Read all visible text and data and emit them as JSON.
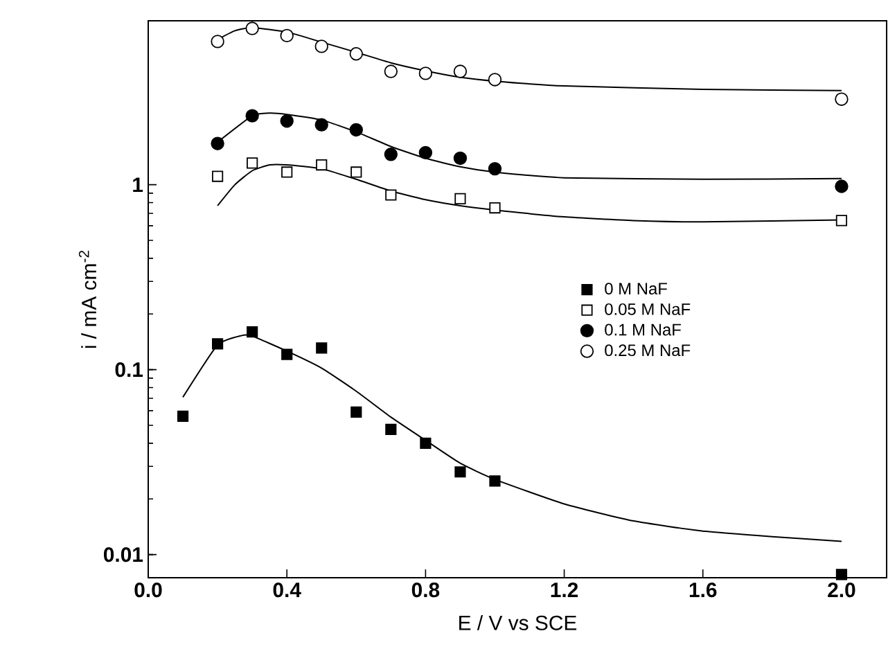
{
  "chart_data": {
    "type": "scatter",
    "xlabel": "E / V vs SCE",
    "ylabel": "i / mA cm$^{-2}$",
    "log": "y",
    "xlim": [
      0,
      2.13
    ],
    "ylim": [
      0.0075,
      7.7
    ],
    "xticks": [
      {
        "value": 0,
        "label": "0.0"
      },
      {
        "value": 0.4,
        "label": "0.4"
      },
      {
        "value": 0.8,
        "label": "0.8"
      },
      {
        "value": 1.2,
        "label": "1.2"
      },
      {
        "value": 1.6,
        "label": "1.6"
      },
      {
        "value": 2.0,
        "label": "2.0"
      }
    ],
    "yticks": [
      0.01,
      0.1,
      1
    ],
    "legend": "right",
    "grid": false,
    "series": [
      {
        "name": "0  M NaF",
        "marker": "square",
        "color": "#000000",
        "x": [
          0.1,
          0.2,
          0.3,
          0.4,
          0.5,
          0.6,
          0.7,
          0.8,
          0.9,
          1.0,
          2.0
        ],
        "values": [
          0.056,
          0.138,
          0.16,
          0.121,
          0.131,
          0.059,
          0.0475,
          0.04,
          0.028,
          0.025,
          0.0078
        ]
      },
      {
        "name": "0.05 M NaF",
        "marker": "square",
        "color": "#ffffff",
        "x": [
          0.2,
          0.3,
          0.4,
          0.5,
          0.6,
          0.7,
          0.9,
          1.0,
          2.0
        ],
        "values": [
          1.11,
          1.31,
          1.17,
          1.28,
          1.17,
          0.88,
          0.84,
          0.75,
          0.64
        ]
      },
      {
        "name": "0.1 M NaF",
        "marker": "circle",
        "color": "#000000",
        "x": [
          0.2,
          0.3,
          0.4,
          0.5,
          0.6,
          0.7,
          0.8,
          0.9,
          1.0,
          2.0
        ],
        "values": [
          1.67,
          2.36,
          2.21,
          2.11,
          1.98,
          1.46,
          1.49,
          1.39,
          1.22,
          0.98
        ]
      },
      {
        "name": "0.25 M NaF",
        "marker": "circle",
        "color": "#ffffff",
        "x": [
          0.2,
          0.3,
          0.4,
          0.5,
          0.6,
          0.7,
          0.8,
          0.9,
          1.0,
          2.0
        ],
        "values": [
          5.95,
          7.0,
          6.4,
          5.6,
          5.1,
          4.1,
          4.0,
          4.1,
          3.7,
          2.9
        ]
      },
      {
        "type": "line",
        "color": "#000000",
        "x": [
          0.1,
          0.2,
          0.27,
          0.3,
          0.4,
          0.5,
          0.6,
          0.7,
          0.8,
          0.9,
          1.0,
          1.2,
          1.4,
          1.6,
          1.8,
          2.0
        ],
        "values": [
          0.071,
          0.136,
          0.153,
          0.152,
          0.126,
          0.102,
          0.0765,
          0.0554,
          0.0415,
          0.0312,
          0.0255,
          0.0188,
          0.0152,
          0.0134,
          0.0125,
          0.0118
        ]
      },
      {
        "type": "line",
        "color": "#000000",
        "x": [
          0.2,
          0.25,
          0.3,
          0.35,
          0.4,
          0.5,
          0.6,
          0.7,
          0.8,
          0.9,
          1.0,
          1.2,
          1.4,
          1.6,
          2.0
        ],
        "values": [
          0.77,
          1.0,
          1.19,
          1.28,
          1.28,
          1.22,
          1.07,
          0.925,
          0.83,
          0.77,
          0.73,
          0.67,
          0.64,
          0.63,
          0.645
        ]
      },
      {
        "type": "line",
        "color": "#000000",
        "x": [
          0.2,
          0.3,
          0.35,
          0.4,
          0.5,
          0.6,
          0.7,
          0.8,
          0.9,
          1.0,
          1.2,
          1.6,
          2.0
        ],
        "values": [
          1.7,
          2.36,
          2.44,
          2.4,
          2.24,
          1.93,
          1.61,
          1.39,
          1.25,
          1.17,
          1.09,
          1.07,
          1.08
        ]
      },
      {
        "type": "line",
        "color": "#000000",
        "x": [
          0.2,
          0.25,
          0.3,
          0.4,
          0.5,
          0.6,
          0.7,
          0.8,
          0.9,
          1.0,
          1.2,
          1.6,
          2.0
        ],
        "values": [
          6.1,
          6.8,
          7.07,
          6.7,
          5.9,
          5.2,
          4.56,
          4.13,
          3.81,
          3.63,
          3.42,
          3.28,
          3.23
        ]
      }
    ]
  }
}
